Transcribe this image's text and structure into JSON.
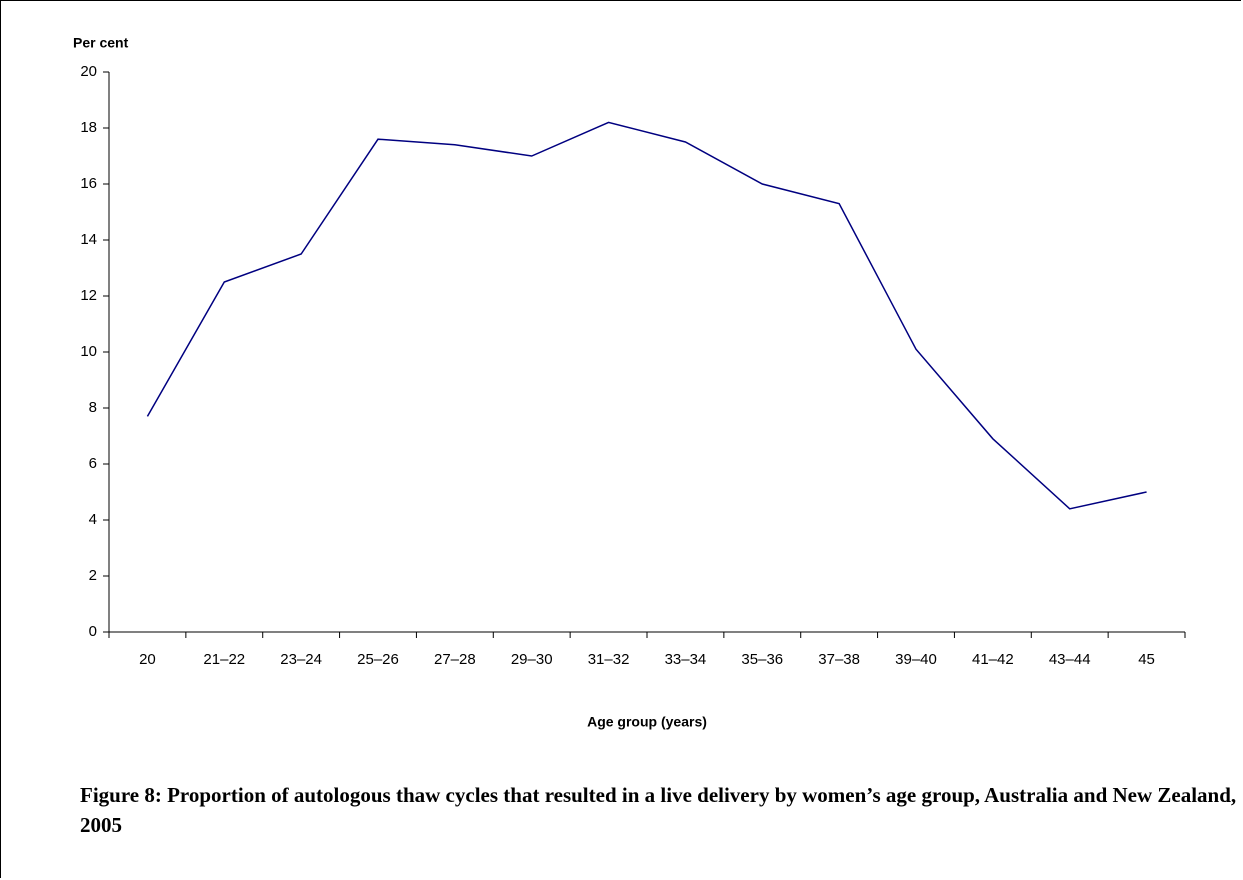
{
  "chart_data": {
    "type": "line",
    "y_label": "Per cent",
    "x_label": "Age group (years)",
    "caption": "Figure 8: Proportion of autologous thaw cycles that resulted in a live delivery by women’s age group, Australia and New Zealand, 2005",
    "categories": [
      "20",
      "21–22",
      "23–24",
      "25–26",
      "27–28",
      "29–30",
      "31–32",
      "33–34",
      "35–36",
      "37–38",
      "39–40",
      "41–42",
      "43–44",
      "45"
    ],
    "values": [
      7.7,
      12.5,
      13.5,
      17.6,
      17.4,
      17.0,
      18.2,
      17.5,
      16.0,
      15.3,
      10.1,
      6.9,
      4.4,
      5.0
    ],
    "color": "#000080",
    "ylim": [
      0,
      20
    ],
    "yticks": [
      0,
      2,
      4,
      6,
      8,
      10,
      12,
      14,
      16,
      18,
      20
    ],
    "grid": false
  }
}
